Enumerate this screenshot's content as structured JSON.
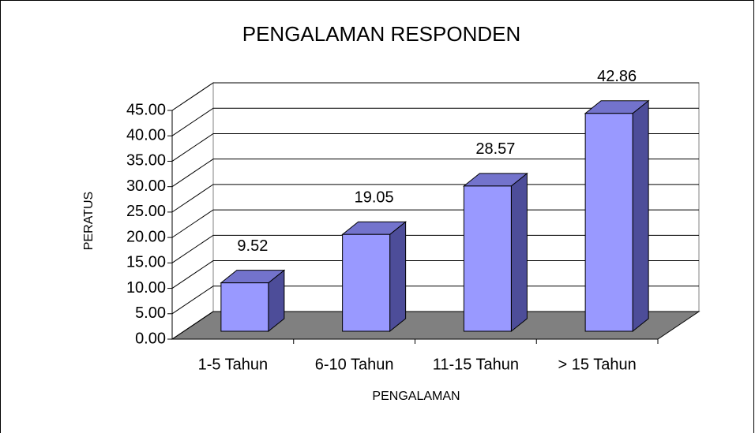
{
  "chart_data": {
    "type": "bar3d",
    "title": "PENGALAMAN RESPONDEN",
    "categories": [
      "1-5 Tahun",
      "6-10 Tahun",
      "11-15 Tahun",
      "> 15 Tahun"
    ],
    "values": [
      9.52,
      19.05,
      28.57,
      42.86
    ],
    "color": "#9999ff",
    "ylim": [
      0,
      45
    ],
    "yticks": [
      {
        "value": 0,
        "label": "0.00"
      },
      {
        "value": 5,
        "label": "5.00"
      },
      {
        "value": 10,
        "label": "10.00"
      },
      {
        "value": 15,
        "label": "15.00"
      },
      {
        "value": 20,
        "label": "20.00"
      },
      {
        "value": 25,
        "label": "25.00"
      },
      {
        "value": 30,
        "label": "30.00"
      },
      {
        "value": 35,
        "label": "35.00"
      },
      {
        "value": 40,
        "label": "40.00"
      },
      {
        "value": 45,
        "label": "45.00"
      }
    ],
    "xlabel": "PENGALAMAN",
    "ylabel": "PERATUS",
    "grid": true
  }
}
